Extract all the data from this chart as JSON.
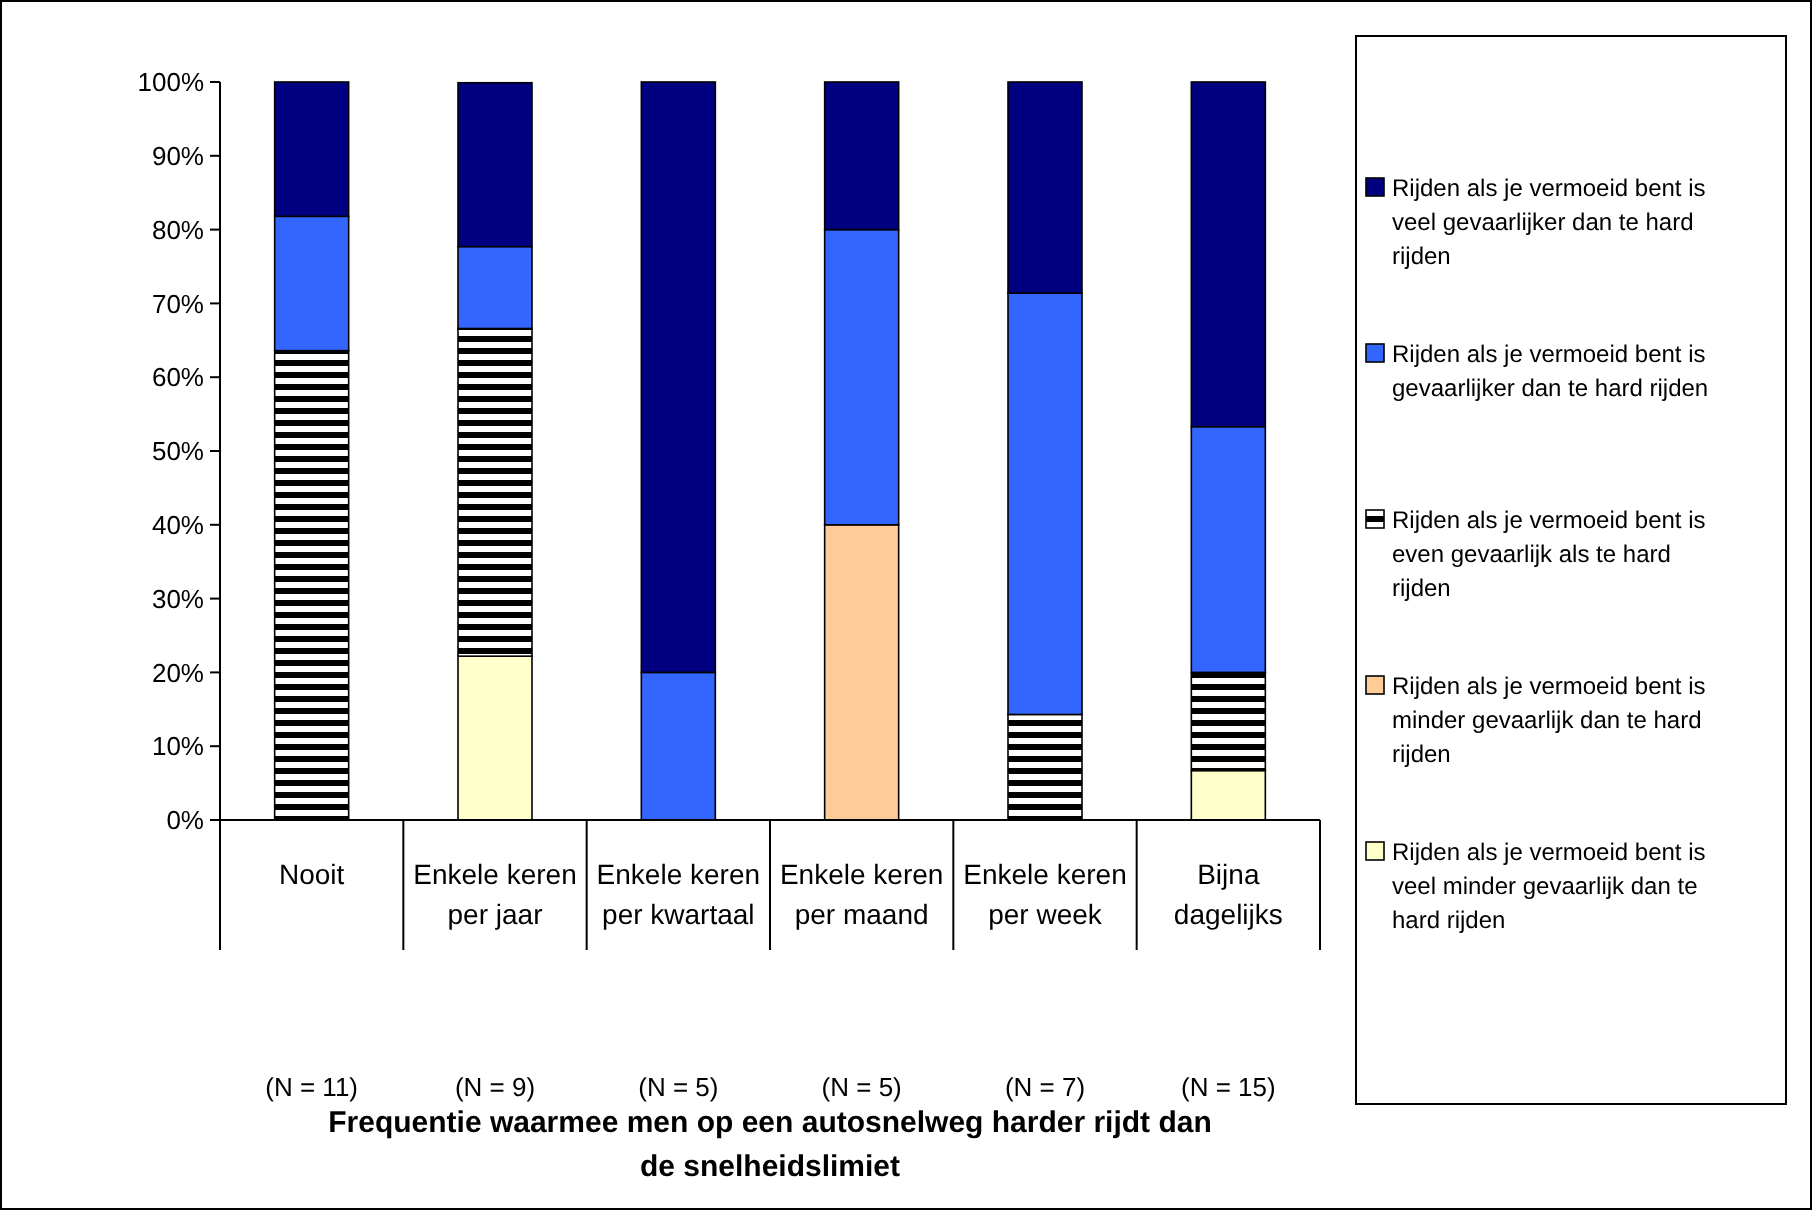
{
  "chart_data": {
    "type": "bar",
    "stacked": true,
    "title": "Frequentie waarmee men op een autosnelweg harder rijdt dan de snelheidslimiet",
    "categories": [
      "Nooit\n(N = 11)",
      "Enkele keren per jaar\n(N = 9)",
      "Enkele keren per kwartaal\n(N = 5)",
      "Enkele keren per maand\n(N = 5)",
      "Enkele keren per week\n(N = 7)",
      "Bijna dagelijks\n(N = 15)"
    ],
    "series": [
      {
        "name": "Rijden als je vermoeid bent is veel minder gevaarlijk dan te hard rijden",
        "color": "#ffffcc",
        "values": [
          0,
          22.2,
          0,
          0,
          0,
          6.7
        ]
      },
      {
        "name": "Rijden als je vermoeid bent is minder gevaarlijk dan te hard rijden",
        "color": "#ffcc99",
        "values": [
          0,
          0,
          0,
          40,
          0,
          0
        ]
      },
      {
        "name": "Rijden als je vermoeid bent is even gevaarlijk als te hard rijden",
        "color": "#000000",
        "values": [
          63.6,
          44.4,
          0,
          0,
          14.3,
          13.3
        ]
      },
      {
        "name": "Rijden als je vermoeid bent is gevaarlijker dan te hard rijden",
        "color": "#3366ff",
        "values": [
          18.2,
          11.1,
          20,
          40,
          57.1,
          33.3
        ]
      },
      {
        "name": "Rijden als je vermoeid bent is veel gevaarlijker dan te hard rijden",
        "color": "#000080",
        "values": [
          18.2,
          22.2,
          80,
          20,
          28.6,
          46.7
        ]
      }
    ],
    "ylim": [
      0,
      100
    ],
    "yticks": [
      {
        "value": 0,
        "label": "0%"
      },
      {
        "value": 10,
        "label": "10%"
      },
      {
        "value": 20,
        "label": "20%"
      },
      {
        "value": 30,
        "label": "30%"
      },
      {
        "value": 40,
        "label": "40%"
      },
      {
        "value": 50,
        "label": "50%"
      },
      {
        "value": 60,
        "label": "60%"
      },
      {
        "value": 70,
        "label": "70%"
      },
      {
        "value": 80,
        "label": "80%"
      },
      {
        "value": 90,
        "label": "90%"
      },
      {
        "value": 100,
        "label": "100%"
      }
    ],
    "legend": "right"
  }
}
